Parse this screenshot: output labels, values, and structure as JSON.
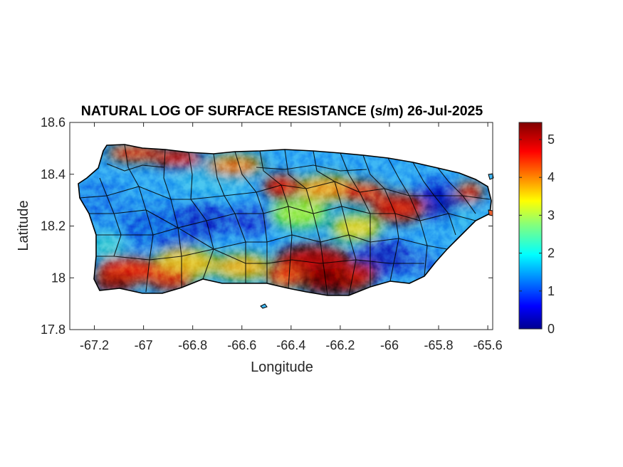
{
  "chart_data": {
    "type": "heatmap",
    "title": "NATURAL LOG OF SURFACE RESISTANCE (s/m) 26-Jul-2025",
    "xlabel": "Longitude",
    "ylabel": "Latitude",
    "xlim": [
      -67.3,
      -65.58
    ],
    "ylim": [
      17.8,
      18.6
    ],
    "xticks": [
      -67.2,
      -67,
      -66.8,
      -66.6,
      -66.4,
      -66.2,
      -66,
      -65.8,
      -65.6
    ],
    "xtick_labels": [
      "-67.2",
      "-67",
      "-66.8",
      "-66.6",
      "-66.4",
      "-66.2",
      "-66",
      "-65.8",
      "-65.6"
    ],
    "yticks": [
      17.8,
      18,
      18.2,
      18.4,
      18.6
    ],
    "ytick_labels": [
      "17.8",
      "18",
      "18.2",
      "18.4",
      "18.6"
    ],
    "colorbar": {
      "colormap": "jet",
      "clim": [
        0,
        5.45
      ],
      "ticks": [
        0,
        1,
        2,
        3,
        4,
        5
      ],
      "tick_labels": [
        "0",
        "1",
        "2",
        "3",
        "4",
        "5"
      ]
    },
    "region": "Puerto Rico",
    "field_pattern": [
      {
        "feature": "high values (red)",
        "location": "south-central coast",
        "lon": -66.25,
        "lat": 17.98,
        "value": 5.2
      },
      {
        "feature": "high values (red)",
        "location": "southwest coast",
        "lon": -67.05,
        "lat": 17.98,
        "value": 4.8
      },
      {
        "feature": "high values (red)",
        "location": "north coast near Arecibo",
        "lon": -66.85,
        "lat": 18.47,
        "value": 4.6
      },
      {
        "feature": "high values (orange-red)",
        "location": "north-central",
        "lon": -66.38,
        "lat": 18.38,
        "value": 4.3
      },
      {
        "feature": "high values (orange-red)",
        "location": "east-central",
        "lon": -66.0,
        "lat": 18.28,
        "value": 4.4
      },
      {
        "feature": "low values (dark blue)",
        "location": "El Yunque / northeast",
        "lon": -65.8,
        "lat": 18.3,
        "value": 0.4
      },
      {
        "feature": "low values (blue)",
        "location": "southeast interior",
        "lon": -66.02,
        "lat": 18.08,
        "value": 0.9
      },
      {
        "feature": "low values (blue)",
        "location": "central mountains",
        "lon": -66.75,
        "lat": 18.22,
        "value": 1.3
      }
    ],
    "grid": false
  }
}
